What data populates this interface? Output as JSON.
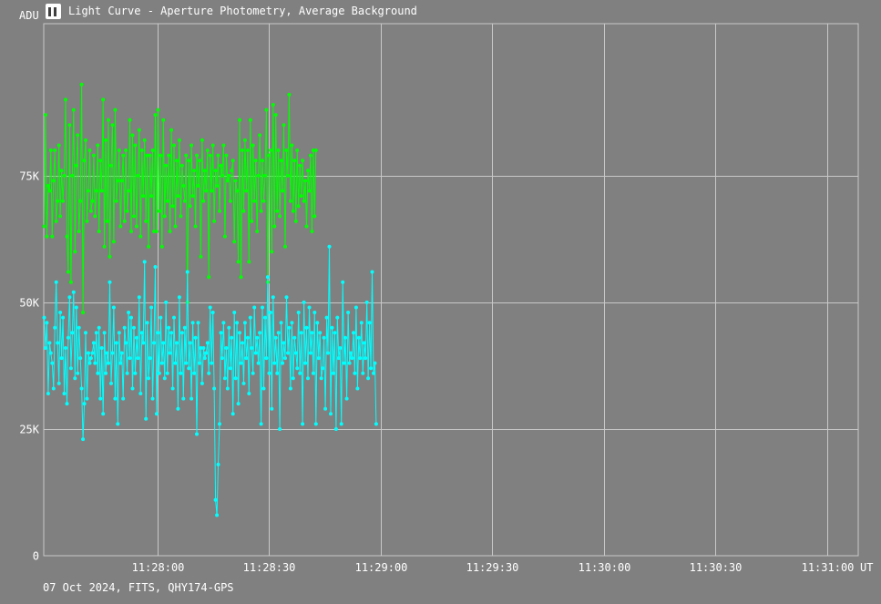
{
  "window": {
    "title": "Light Curve - Aperture Photometry, Average Background",
    "footer": "07 Oct 2024, FITS, QHY174-GPS"
  },
  "colors": {
    "background": "#808080",
    "grid": "#c8c8c8",
    "series_green": "#00ff00",
    "series_cyan": "#00ffff"
  },
  "chart_data": {
    "type": "line",
    "ylabel": "ADU",
    "xlabel": "UT",
    "ylim": [
      0,
      105000
    ],
    "xlim_seconds": [
      0,
      365
    ],
    "x_ticks": [
      {
        "label": "11:28:00",
        "value": 51
      },
      {
        "label": "11:28:30",
        "value": 101
      },
      {
        "label": "11:29:00",
        "value": 151
      },
      {
        "label": "11:29:30",
        "value": 201
      },
      {
        "label": "11:30:00",
        "value": 251
      },
      {
        "label": "11:30:30",
        "value": 301
      },
      {
        "label": "11:31:00",
        "value": 351
      }
    ],
    "y_ticks": [
      {
        "label": "0",
        "value": 0
      },
      {
        "label": "25K",
        "value": 25000
      },
      {
        "label": "50K",
        "value": 50000
      },
      {
        "label": "75K",
        "value": 75000
      }
    ],
    "grid": true,
    "series": [
      {
        "color_key": "series_green",
        "start_x": 0.2,
        "step_x": 0.6,
        "values": [
          65000,
          87000,
          63000,
          73000,
          72000,
          80000,
          63000,
          74000,
          80000,
          66000,
          70000,
          81000,
          67000,
          76000,
          70000,
          75000,
          90000,
          63000,
          56000,
          85000,
          54000,
          75000,
          88000,
          60000,
          77000,
          83000,
          64000,
          70000,
          93000,
          48000,
          78000,
          82000,
          66000,
          72000,
          80000,
          68000,
          70000,
          79000,
          67000,
          72000,
          81000,
          64000,
          78000,
          72000,
          90000,
          61000,
          82000,
          66000,
          86000,
          59000,
          77000,
          85000,
          62000,
          88000,
          70000,
          74000,
          80000,
          65000,
          74000,
          79000,
          66000,
          80000,
          68000,
          72000,
          86000,
          64000,
          83000,
          67000,
          81000,
          65000,
          75000,
          84000,
          63000,
          80000,
          71000,
          82000,
          66000,
          79000,
          61000,
          79000,
          71000,
          80000,
          64000,
          87000,
          64000,
          88000,
          68000,
          79000,
          61000,
          86000,
          67000,
          77000,
          70000,
          79000,
          64000,
          84000,
          69000,
          81000,
          65000,
          78000,
          71000,
          82000,
          67000,
          77000,
          73000,
          70000,
          79000,
          50000,
          78000,
          69000,
          81000,
          71000,
          76000,
          65000,
          79000,
          73000,
          78000,
          59000,
          82000,
          70000,
          76000,
          72000,
          80000,
          55000,
          79000,
          72000,
          81000,
          66000,
          76000,
          73000,
          79000,
          68000,
          77000,
          75000,
          81000,
          63000,
          79000,
          74000,
          75000,
          70000,
          76000,
          78000,
          62000,
          74000,
          72000,
          58000,
          86000,
          55000,
          80000,
          68000,
          82000,
          72000,
          80000,
          58000,
          86000,
          66000,
          81000,
          70000,
          78000,
          64000,
          75000,
          83000,
          68000,
          78000,
          70000,
          75000,
          88000,
          54000,
          79000,
          80000,
          60000,
          89000,
          65000,
          87000,
          68000,
          80000,
          67000,
          78000,
          72000,
          85000,
          61000,
          80000,
          75000,
          91000,
          70000,
          81000,
          68000,
          78000,
          66000,
          80000,
          69000,
          77000,
          71000,
          78000,
          70000,
          74000,
          65000,
          76000,
          72000,
          79000,
          64000,
          80000,
          67000,
          80000
        ]
      },
      {
        "color_key": "series_cyan",
        "start_x": 0.2,
        "step_x": 0.6,
        "values": [
          47000,
          41000,
          46000,
          32000,
          42000,
          40000,
          38000,
          33000,
          45000,
          54000,
          42000,
          34000,
          48000,
          39000,
          47000,
          32000,
          41000,
          30000,
          43000,
          51000,
          37000,
          44000,
          52000,
          35000,
          49000,
          36000,
          45000,
          39000,
          33000,
          23000,
          30000,
          44000,
          31000,
          40000,
          38000,
          39000,
          40000,
          42000,
          38000,
          44000,
          36000,
          45000,
          31000,
          41000,
          28000,
          44000,
          36000,
          40000,
          38000,
          54000,
          34000,
          40000,
          49000,
          31000,
          42000,
          26000,
          44000,
          38000,
          40000,
          31000,
          45000,
          42000,
          36000,
          48000,
          39000,
          47000,
          33000,
          45000,
          36000,
          43000,
          39000,
          51000,
          32000,
          44000,
          42000,
          58000,
          27000,
          46000,
          35000,
          39000,
          49000,
          31000,
          42000,
          57000,
          28000,
          44000,
          36000,
          47000,
          38000,
          42000,
          35000,
          50000,
          36000,
          45000,
          40000,
          44000,
          33000,
          47000,
          38000,
          42000,
          29000,
          51000,
          36000,
          44000,
          31000,
          45000,
          38000,
          56000,
          37000,
          42000,
          31000,
          46000,
          36000,
          43000,
          24000,
          46000,
          38000,
          41000,
          34000,
          41000,
          39000,
          40000,
          42000,
          36000,
          49000,
          38000,
          48000,
          33000,
          11000,
          8000,
          18000,
          26000,
          44000,
          39000,
          46000,
          35000,
          41000,
          33000,
          45000,
          37000,
          43000,
          28000,
          48000,
          35000,
          46000,
          30000,
          44000,
          38000,
          42000,
          34000,
          46000,
          39000,
          43000,
          32000,
          47000,
          41000,
          36000,
          49000,
          40000,
          43000,
          38000,
          44000,
          26000,
          49000,
          33000,
          47000,
          39000,
          55000,
          36000,
          48000,
          29000,
          51000,
          38000,
          43000,
          36000,
          44000,
          25000,
          46000,
          38000,
          42000,
          39000,
          51000,
          40000,
          45000,
          33000,
          46000,
          35000,
          43000,
          40000,
          37000,
          48000,
          36000,
          44000,
          26000,
          50000,
          38000,
          45000,
          35000,
          49000,
          40000,
          44000,
          36000,
          48000,
          26000,
          46000,
          39000,
          44000,
          35000,
          37000,
          43000,
          29000,
          47000,
          40000,
          61000,
          28000,
          45000,
          36000,
          44000,
          25000,
          47000,
          39000,
          41000,
          26000,
          54000,
          38000,
          43000,
          31000,
          48000,
          38000,
          40000,
          39000,
          44000,
          36000,
          49000,
          33000,
          43000,
          39000,
          46000,
          36000,
          42000,
          39000,
          50000,
          35000,
          46000,
          37000,
          56000,
          36000,
          38000,
          26000
        ]
      }
    ]
  }
}
